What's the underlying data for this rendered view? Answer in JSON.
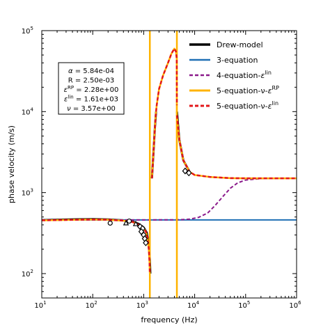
{
  "chart_data": {
    "type": "line",
    "xlabel": "frequency (Hz)",
    "ylabel": "phase velocity (m/s)",
    "x_scale": "log",
    "y_scale": "log",
    "xlim": [
      10,
      1000000
    ],
    "ylim": [
      50,
      100000
    ],
    "x_ticks": [
      {
        "value": 10,
        "base": "10",
        "exp": "1"
      },
      {
        "value": 100,
        "base": "10",
        "exp": "2"
      },
      {
        "value": 1000,
        "base": "10",
        "exp": "3"
      },
      {
        "value": 10000,
        "base": "10",
        "exp": "4"
      },
      {
        "value": 100000,
        "base": "10",
        "exp": "5"
      },
      {
        "value": 1000000,
        "base": "10",
        "exp": "6"
      }
    ],
    "y_ticks": [
      {
        "value": 100,
        "base": "10",
        "exp": "2"
      },
      {
        "value": 1000,
        "base": "10",
        "exp": "3"
      },
      {
        "value": 10000,
        "base": "10",
        "exp": "4"
      },
      {
        "value": 100000,
        "base": "10",
        "exp": "5"
      }
    ],
    "grid": false,
    "legend_position": "top-right",
    "parameters": [
      {
        "sym": "α",
        "sup": "",
        "val": " = 5.84e-04"
      },
      {
        "sym": "R",
        "sup": "",
        "val": " = 2.50e-03"
      },
      {
        "sym": "ε",
        "sup": "RP",
        "val": " = 2.28e+00"
      },
      {
        "sym": "ε",
        "sup": "lin",
        "val": " = 1.61e+03"
      },
      {
        "sym": "ν",
        "sup": "",
        "val": " = 3.57e+00"
      }
    ],
    "series": [
      {
        "name": "Drew-model",
        "name_sup": "",
        "color": "#000000",
        "style": "solid",
        "width": 3,
        "segments": [
          [
            [
              10,
              458
            ],
            [
              20,
              462
            ],
            [
              50,
              468
            ],
            [
              100,
              470
            ],
            [
              200,
              466
            ],
            [
              400,
              455
            ],
            [
              600,
              440
            ],
            [
              800,
              410
            ],
            [
              1000,
              370
            ],
            [
              1150,
              320
            ],
            [
              1250,
              240
            ],
            [
              1320,
              150
            ],
            [
              1350,
              100
            ]
          ],
          [
            [
              1450,
              1500
            ],
            [
              1550,
              3000
            ],
            [
              1650,
              6000
            ],
            [
              1750,
              10000
            ]
          ],
          [
            [
              4500,
              10000
            ],
            [
              5000,
              4500
            ],
            [
              6000,
              2500
            ],
            [
              8000,
              1800
            ]
          ]
        ]
      },
      {
        "name": "3-equation",
        "name_sup": "",
        "color": "#1f6fb5",
        "style": "solid",
        "width": 2,
        "segments": [
          [
            [
              10,
              460
            ],
            [
              1000000,
              460
            ]
          ]
        ]
      },
      {
        "name": "4-equation-ε",
        "name_sup": "lin",
        "color": "#8b1a8b",
        "style": "dashed",
        "width": 2,
        "segments": [
          [
            [
              10,
              460
            ],
            [
              1000,
              460
            ],
            [
              5000,
              462
            ],
            [
              8000,
              470
            ],
            [
              12000,
              495
            ],
            [
              18000,
              560
            ],
            [
              25000,
              690
            ],
            [
              35000,
              880
            ],
            [
              50000,
              1130
            ],
            [
              70000,
              1320
            ],
            [
              100000,
              1430
            ],
            [
              200000,
              1490
            ],
            [
              500000,
              1500
            ],
            [
              1000000,
              1500
            ]
          ]
        ]
      },
      {
        "name": "5-equation-ν-ε",
        "name_sup": "RP",
        "color": "#ffb300",
        "style": "solid",
        "width": 2.5,
        "segments": [
          [
            [
              10,
              455
            ],
            [
              20,
              458
            ],
            [
              50,
              462
            ],
            [
              100,
              465
            ],
            [
              200,
              462
            ],
            [
              400,
              450
            ],
            [
              600,
              435
            ],
            [
              800,
              400
            ],
            [
              1000,
              360
            ],
            [
              1100,
              330
            ],
            [
              1200,
              270
            ],
            [
              1260,
              200
            ],
            [
              1300,
              140
            ],
            [
              1320,
              100
            ]
          ],
          [
            [
              1320,
              50
            ],
            [
              1320,
              100000
            ]
          ],
          [
            [
              1450,
              1500
            ],
            [
              1550,
              3000
            ],
            [
              1650,
              6000
            ],
            [
              1720,
              9000
            ],
            [
              1800,
              12000
            ],
            [
              2000,
              19000
            ],
            [
              2400,
              28000
            ],
            [
              3000,
              40000
            ],
            [
              3500,
              52000
            ],
            [
              4000,
              60000
            ],
            [
              4300,
              55000
            ],
            [
              4450,
              45000
            ],
            [
              4480,
              50
            ],
            [
              4480,
              100000
            ]
          ],
          [
            [
              4480,
              9000
            ],
            [
              5000,
              4500
            ],
            [
              6000,
              2500
            ],
            [
              8000,
              1800
            ],
            [
              10000,
              1650
            ],
            [
              20000,
              1560
            ],
            [
              50000,
              1510
            ],
            [
              100000,
              1500
            ],
            [
              1000000,
              1500
            ]
          ]
        ]
      },
      {
        "name": "5-equation-ν-ε",
        "name_sup": "lin",
        "color": "#e3171a",
        "style": "dashed",
        "width": 2.5,
        "segments": [
          [
            [
              10,
              455
            ],
            [
              20,
              458
            ],
            [
              50,
              462
            ],
            [
              100,
              465
            ],
            [
              200,
              462
            ],
            [
              400,
              450
            ],
            [
              600,
              435
            ],
            [
              800,
              400
            ],
            [
              1000,
              360
            ],
            [
              1100,
              330
            ],
            [
              1200,
              270
            ],
            [
              1260,
              200
            ],
            [
              1300,
              140
            ],
            [
              1320,
              100
            ]
          ],
          [
            [
              1450,
              1500
            ],
            [
              1550,
              3000
            ],
            [
              1650,
              6000
            ],
            [
              1720,
              9000
            ],
            [
              1800,
              12000
            ],
            [
              2000,
              19000
            ],
            [
              2400,
              28000
            ],
            [
              3000,
              40000
            ],
            [
              3500,
              52000
            ],
            [
              4000,
              60000
            ],
            [
              4300,
              55000
            ],
            [
              4450,
              45000
            ],
            [
              4480,
              12000
            ]
          ],
          [
            [
              4480,
              9000
            ],
            [
              5000,
              4500
            ],
            [
              6000,
              2500
            ],
            [
              8000,
              1800
            ],
            [
              10000,
              1650
            ],
            [
              20000,
              1560
            ],
            [
              50000,
              1510
            ],
            [
              100000,
              1500
            ],
            [
              1000000,
              1500
            ]
          ]
        ]
      }
    ],
    "measurements": [
      {
        "shape": "circle",
        "x": 220,
        "y": 420
      },
      {
        "shape": "circle",
        "x": 520,
        "y": 445
      },
      {
        "shape": "triangle",
        "x": 450,
        "y": 420
      },
      {
        "shape": "triangle",
        "x": 700,
        "y": 410
      },
      {
        "shape": "diamond",
        "x": 850,
        "y": 380
      },
      {
        "shape": "diamond",
        "x": 950,
        "y": 360
      },
      {
        "shape": "diamond",
        "x": 1000,
        "y": 300
      },
      {
        "shape": "diamond",
        "x": 1050,
        "y": 270
      },
      {
        "shape": "diamond",
        "x": 1100,
        "y": 240
      },
      {
        "shape": "diamond",
        "x": 900,
        "y": 330
      },
      {
        "shape": "diamond",
        "x": 6500,
        "y": 1850
      },
      {
        "shape": "diamond",
        "x": 7700,
        "y": 1750
      }
    ]
  }
}
